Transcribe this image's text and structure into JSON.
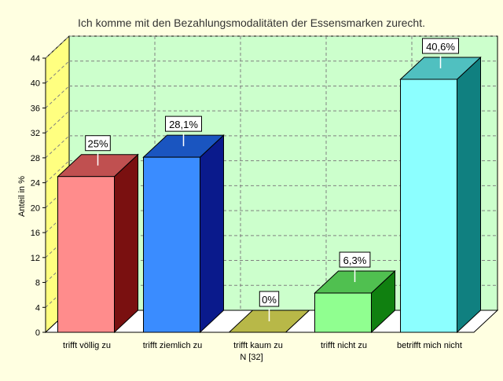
{
  "colors": {
    "background": "#ffffe1",
    "plot_back": "#ccffcc",
    "plot_floor": "#ffffff",
    "plot_side": "#ffff80",
    "grid": "#808080",
    "bars": [
      {
        "front": "#ff8c8c",
        "side": "#7a1010",
        "top": "#c05050"
      },
      {
        "front": "#3a8cff",
        "side": "#0a1a8c",
        "top": "#1a55c0"
      },
      {
        "front": "#c8c850",
        "side": "#808020",
        "top": "#b8b848"
      },
      {
        "front": "#90ff90",
        "side": "#108010",
        "top": "#50c050"
      },
      {
        "front": "#8cffff",
        "side": "#108080",
        "top": "#50c0c0"
      }
    ]
  },
  "chart_data": {
    "type": "bar",
    "title": "Ich komme mit den Bezahlungsmodalitäten der Essensmarken zurecht.",
    "ylabel": "Anteil in %",
    "xlabel": "N [32]",
    "categories": [
      "trifft völlig zu",
      "trifft ziemlich zu",
      "trifft kaum zu",
      "trifft nicht zu",
      "betrifft mich nicht"
    ],
    "values": [
      25,
      28.1,
      0,
      6.3,
      40.6
    ],
    "data_labels": [
      "25%",
      "28,1%",
      "0%",
      "6,3%",
      "40,6%"
    ],
    "ylim": [
      0,
      44
    ],
    "yticks": [
      0,
      4,
      8,
      12,
      16,
      20,
      24,
      28,
      32,
      36,
      40,
      44
    ],
    "grid": true,
    "legend": "none"
  }
}
